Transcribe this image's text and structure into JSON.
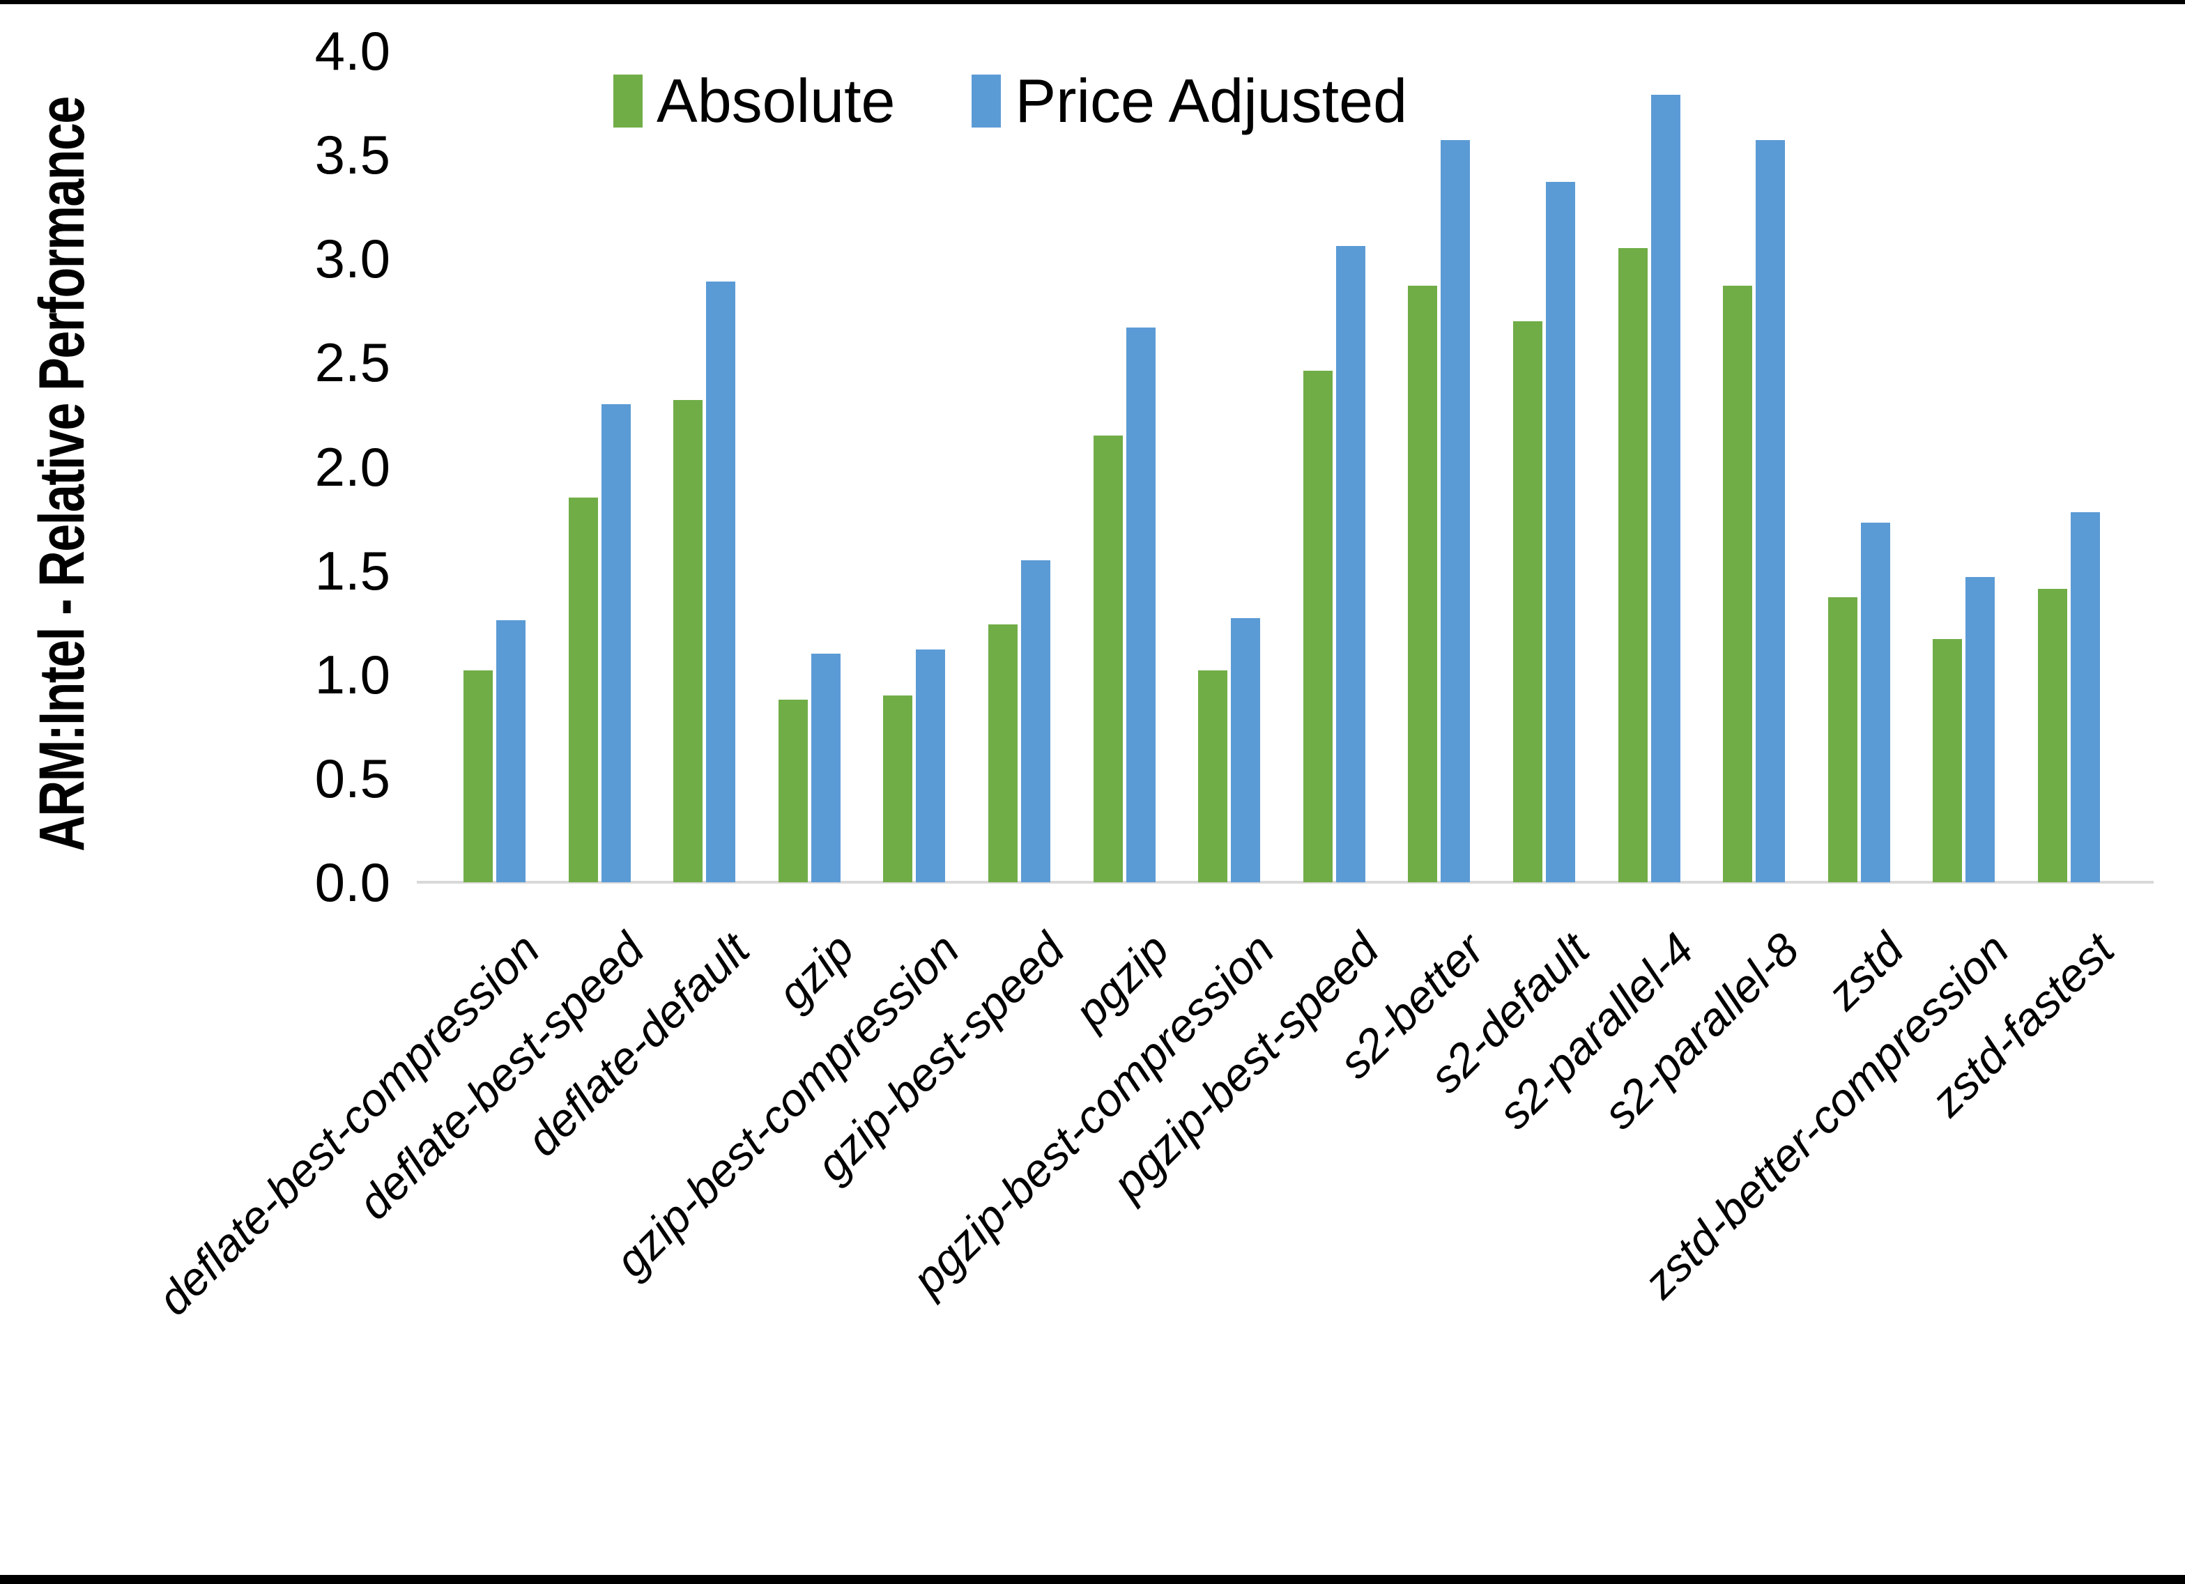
{
  "chart_data": {
    "type": "bar",
    "title": "",
    "ylabel": "ARM:Intel - Relative Performance",
    "xlabel": "",
    "ylim": [
      0.0,
      4.0
    ],
    "ytick_step": 0.5,
    "ytick_labels": [
      "0.0",
      "0.5",
      "1.0",
      "1.5",
      "2.0",
      "2.5",
      "3.0",
      "3.5",
      "4.0"
    ],
    "grid": false,
    "legend_position": "top-center",
    "axis_line_color": "#d9d9d9",
    "categories": [
      "deflate-best-compression",
      "deflate-best-speed",
      "deflate-default",
      "gzip",
      "gzip-best-compression",
      "gzip-best-speed",
      "pgzip",
      "pgzip-best-compression",
      "pgzip-best-speed",
      "s2-better",
      "s2-default",
      "s2-parallel-4",
      "s2-parallel-8",
      "zstd",
      "zstd-better-compression",
      "zstd-fastest"
    ],
    "series": [
      {
        "name": "Absolute",
        "color": "#70ad47",
        "values": [
          1.02,
          1.85,
          2.32,
          0.88,
          0.9,
          1.24,
          2.15,
          1.02,
          2.46,
          2.87,
          2.7,
          3.05,
          2.87,
          1.37,
          1.17,
          1.41
        ]
      },
      {
        "name": "Price Adjusted",
        "color": "#5b9bd5",
        "values": [
          1.26,
          2.3,
          2.89,
          1.1,
          1.12,
          1.55,
          2.67,
          1.27,
          3.06,
          3.57,
          3.37,
          3.79,
          3.57,
          1.73,
          1.47,
          1.78
        ]
      }
    ]
  }
}
